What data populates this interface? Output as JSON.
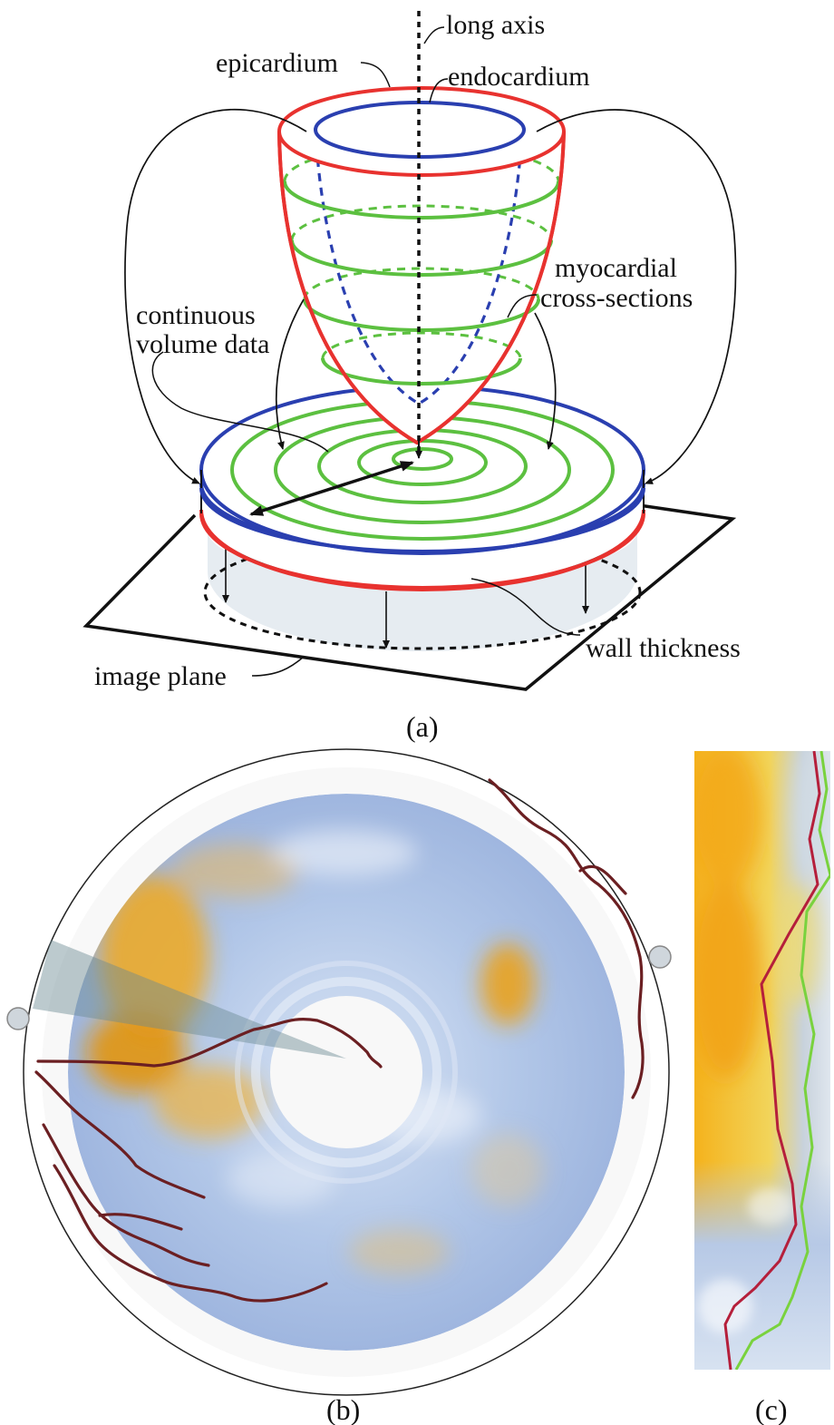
{
  "panel_a": {
    "labels": {
      "long_axis": "long axis",
      "epicardium": "epicardium",
      "endocardium": "endocardium",
      "myocardial_1": "myocardial",
      "myocardial_2": "cross-sections",
      "continuous_1": "continuous",
      "continuous_2": "volume data",
      "wall_thickness": "wall thickness",
      "image_plane": "image plane"
    },
    "caption": "(a)"
  },
  "panel_b": {
    "caption": "(b)"
  },
  "panel_c": {
    "caption": "(c)"
  },
  "colors": {
    "epicardium": "#e8322f",
    "endocardium": "#2a3fb0",
    "cross_sections": "#5cc040",
    "heat_blue": "#a9bfe4",
    "heat_orange": "#f0a91c",
    "vessel": "#6b1f22",
    "profile_red": "#b51f3b",
    "profile_green": "#79d23e"
  }
}
